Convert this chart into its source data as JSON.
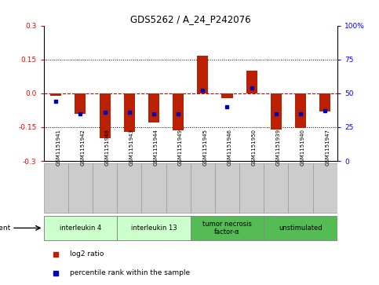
{
  "title": "GDS5262 / A_24_P242076",
  "samples": [
    "GSM1151941",
    "GSM1151942",
    "GSM1151948",
    "GSM1151943",
    "GSM1151944",
    "GSM1151949",
    "GSM1151945",
    "GSM1151946",
    "GSM1151950",
    "GSM1151939",
    "GSM1151940",
    "GSM1151947"
  ],
  "log2_ratio": [
    -0.01,
    -0.09,
    -0.2,
    -0.17,
    -0.13,
    -0.165,
    0.165,
    -0.02,
    0.1,
    -0.16,
    -0.155,
    -0.08
  ],
  "percentile_rank": [
    44,
    35,
    36,
    36,
    35,
    35,
    52,
    40,
    54,
    35,
    35,
    37
  ],
  "ylim_left": [
    -0.3,
    0.3
  ],
  "yticks_left": [
    -0.3,
    -0.15,
    0.0,
    0.15,
    0.3
  ],
  "yticks_right": [
    0,
    25,
    50,
    75,
    100
  ],
  "bar_color": "#BB2000",
  "square_color": "#0000BB",
  "dashed_line_color": "#CC0000",
  "groups": [
    {
      "label": "interleukin 4",
      "indices": [
        0,
        1,
        2
      ],
      "color": "#CCFFCC"
    },
    {
      "label": "interleukin 13",
      "indices": [
        3,
        4,
        5
      ],
      "color": "#CCFFCC"
    },
    {
      "label": "tumor necrosis\nfactor-α",
      "indices": [
        6,
        7,
        8
      ],
      "color": "#55BB55"
    },
    {
      "label": "unstimulated",
      "indices": [
        9,
        10,
        11
      ],
      "color": "#55BB55"
    }
  ],
  "agent_label": "agent",
  "legend_log2": "log2 ratio",
  "legend_pct": "percentile rank within the sample",
  "bar_width": 0.45,
  "grid_dotted_levels": [
    -0.15,
    0.15
  ],
  "sample_box_color": "#CCCCCC",
  "sample_box_edge": "#999999"
}
